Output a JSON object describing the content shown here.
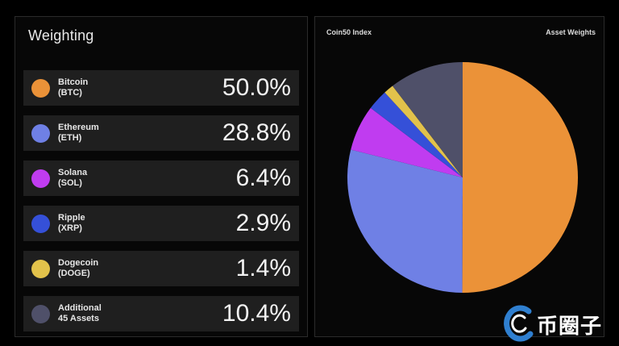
{
  "weighting": {
    "title": "Weighting",
    "assets": [
      {
        "name": "Bitcoin",
        "ticker": "(BTC)",
        "pct": "50.0%",
        "color": "#eb9238"
      },
      {
        "name": "Ethereum",
        "ticker": "(ETH)",
        "pct": "28.8%",
        "color": "#6f80e5"
      },
      {
        "name": "Solana",
        "ticker": "(SOL)",
        "pct": "6.4%",
        "color": "#c03cf0"
      },
      {
        "name": "Ripple",
        "ticker": "(XRP)",
        "pct": "2.9%",
        "color": "#3550d8"
      },
      {
        "name": "Dogecoin",
        "ticker": "(DOGE)",
        "pct": "1.4%",
        "color": "#e2c24b"
      },
      {
        "name": "Additional",
        "ticker": "45 Assets",
        "pct": "10.4%",
        "color": "#4f5069"
      }
    ]
  },
  "chart_data": {
    "type": "pie",
    "title_left": "Coin50 Index",
    "title_right": "Asset Weights",
    "categories": [
      "Bitcoin",
      "Ethereum",
      "Solana",
      "Ripple",
      "Dogecoin",
      "Additional 45 Assets"
    ],
    "values": [
      50.0,
      28.8,
      6.4,
      2.9,
      1.4,
      10.4
    ],
    "colors": [
      "#eb9238",
      "#6f80e5",
      "#c03cf0",
      "#3550d8",
      "#e2c24b",
      "#4f5069"
    ]
  },
  "watermark": {
    "text": "币圈子",
    "icon": "logo-c-icon"
  }
}
